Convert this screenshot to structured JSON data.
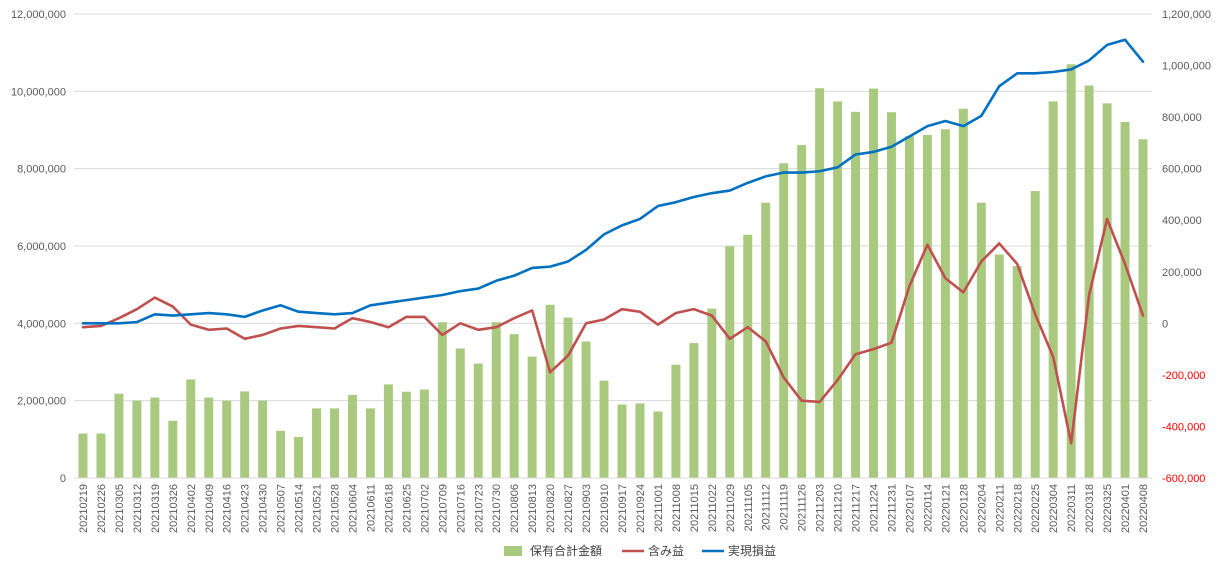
{
  "chart_data": {
    "type": "bar",
    "title": "",
    "xlabel": "",
    "ylabel": "",
    "grid": true,
    "legend_position": "bottom",
    "categories": [
      "20210219",
      "20210226",
      "20210305",
      "20210312",
      "20210319",
      "20210326",
      "20210402",
      "20210409",
      "20210416",
      "20210423",
      "20210430",
      "20210507",
      "20210514",
      "20210521",
      "20210528",
      "20210604",
      "20210611",
      "20210618",
      "20210625",
      "20210702",
      "20210709",
      "20210716",
      "20210723",
      "20210730",
      "20210806",
      "20210813",
      "20210820",
      "20210827",
      "20210903",
      "20210910",
      "20210917",
      "20210924",
      "20211001",
      "20211008",
      "20211015",
      "20211022",
      "20211029",
      "20211105",
      "20211112",
      "20211119",
      "20211126",
      "20211203",
      "20211210",
      "20211217",
      "20211224",
      "20211231",
      "20220107",
      "20220114",
      "20220121",
      "20220128",
      "20220204",
      "20220211",
      "20220218",
      "20220225",
      "20220304",
      "20220311",
      "20220318",
      "20220325",
      "20220401",
      "20220408"
    ],
    "y_ticks": [
      "0",
      "2,000,000",
      "4,000,000",
      "6,000,000",
      "8,000,000",
      "10,000,000",
      "12,000,000"
    ],
    "y2_ticks": [
      "-600,000",
      "-400,000",
      "-200,000",
      "0",
      "200,000",
      "400,000",
      "600,000",
      "800,000",
      "1,000,000",
      "1,200,000"
    ],
    "ylim": [
      0,
      12000000
    ],
    "y2lim": [
      -600000,
      1200000
    ],
    "series": [
      {
        "name": "保有合計金額",
        "kind": "bar",
        "axis": "left",
        "color": "#A9C97F",
        "values": [
          1150000,
          1150000,
          2180000,
          2000000,
          2080000,
          1480000,
          2550000,
          2080000,
          2000000,
          2240000,
          2000000,
          1220000,
          1060000,
          1800000,
          1800000,
          2150000,
          1800000,
          2420000,
          2230000,
          2290000,
          4030000,
          3350000,
          2960000,
          4030000,
          3720000,
          3140000,
          4480000,
          4150000,
          3530000,
          2520000,
          1900000,
          1930000,
          1720000,
          2930000,
          3490000,
          4380000,
          5990000,
          6290000,
          7120000,
          8140000,
          8610000,
          10080000,
          9740000,
          9470000,
          10070000,
          9460000,
          8840000,
          8870000,
          9020000,
          9550000,
          7120000,
          5780000,
          5480000,
          7420000,
          9740000,
          10700000,
          10150000,
          9690000,
          9210000,
          8760000
        ]
      },
      {
        "name": "含み益",
        "kind": "line",
        "axis": "right",
        "color": "#C0504D",
        "values": [
          -15000,
          -10000,
          20000,
          55000,
          100000,
          65000,
          -5000,
          -25000,
          -20000,
          -60000,
          -45000,
          -20000,
          -10000,
          -15000,
          -20000,
          20000,
          5000,
          -15000,
          25000,
          25000,
          -45000,
          0,
          -25000,
          -15000,
          20000,
          50000,
          -190000,
          -125000,
          0,
          15000,
          55000,
          45000,
          -5000,
          40000,
          55000,
          30000,
          -60000,
          -15000,
          -70000,
          -210000,
          -300000,
          -305000,
          -220000,
          -120000,
          -100000,
          -75000,
          145000,
          305000,
          175000,
          120000,
          240000,
          310000,
          230000,
          35000,
          -130000,
          -465000,
          110000,
          405000,
          230000,
          30000
        ]
      },
      {
        "name": "実現損益",
        "kind": "line",
        "axis": "right",
        "color": "#0070C0",
        "values": [
          0,
          0,
          0,
          5000,
          35000,
          30000,
          35000,
          40000,
          35000,
          25000,
          50000,
          70000,
          45000,
          40000,
          35000,
          40000,
          70000,
          80000,
          90000,
          100000,
          110000,
          125000,
          135000,
          165000,
          185000,
          215000,
          220000,
          240000,
          285000,
          345000,
          380000,
          405000,
          455000,
          470000,
          490000,
          505000,
          515000,
          545000,
          570000,
          585000,
          585000,
          590000,
          605000,
          655000,
          665000,
          685000,
          725000,
          765000,
          785000,
          765000,
          805000,
          920000,
          970000,
          970000,
          975000,
          985000,
          1020000,
          1080000,
          1100000,
          1015000
        ]
      }
    ]
  }
}
